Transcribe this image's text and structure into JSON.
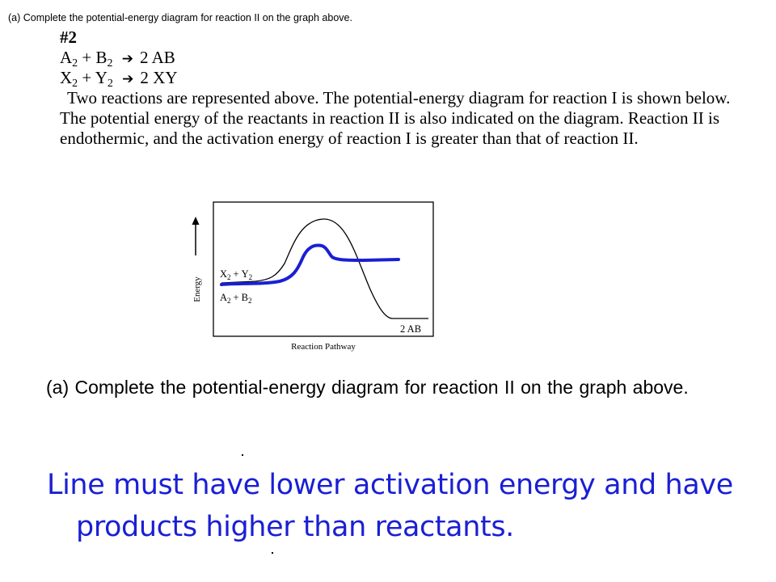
{
  "header_note": "(a) Complete the potential-energy diagram for reaction II on the graph above.",
  "problem": {
    "number": "#2",
    "reaction_1": {
      "r1": "A",
      "r1_sub": "2",
      "plus": "+",
      "r2": "B",
      "r2_sub": "2",
      "arrow": "➔",
      "product": "2 AB"
    },
    "reaction_2": {
      "r1": "X",
      "r1_sub": "2",
      "plus": "+",
      "r2": "Y",
      "r2_sub": "2",
      "arrow": "➔",
      "product": "2 XY"
    },
    "description": "Two reactions are represented above. The potential-energy diagram for reaction I is shown below. The potential energy of the reactants in reaction II is also indicated on the diagram. Reaction II is endothermic, and the activation energy of reaction I is greater than that of reaction II."
  },
  "diagram": {
    "y_axis_label": "Energy",
    "x_axis_label": "Reaction Pathway",
    "label_reactants_ii": {
      "a": "X",
      "a_sub": "2",
      "plus": "+",
      "b": "Y",
      "b_sub": "2"
    },
    "label_reactants_i": {
      "a": "A",
      "a_sub": "2",
      "plus": "+",
      "b": "B",
      "b_sub": "2"
    },
    "label_products_i": "2 AB",
    "colors": {
      "reaction_i_curve": "#000000",
      "reaction_ii_curve": "#1a1fd4"
    }
  },
  "question": "(a) Complete the potential-energy diagram for reaction II on the graph above.",
  "answer": {
    "line1": "Line must have lower activation energy and have",
    "line2": "products higher than reactants."
  }
}
